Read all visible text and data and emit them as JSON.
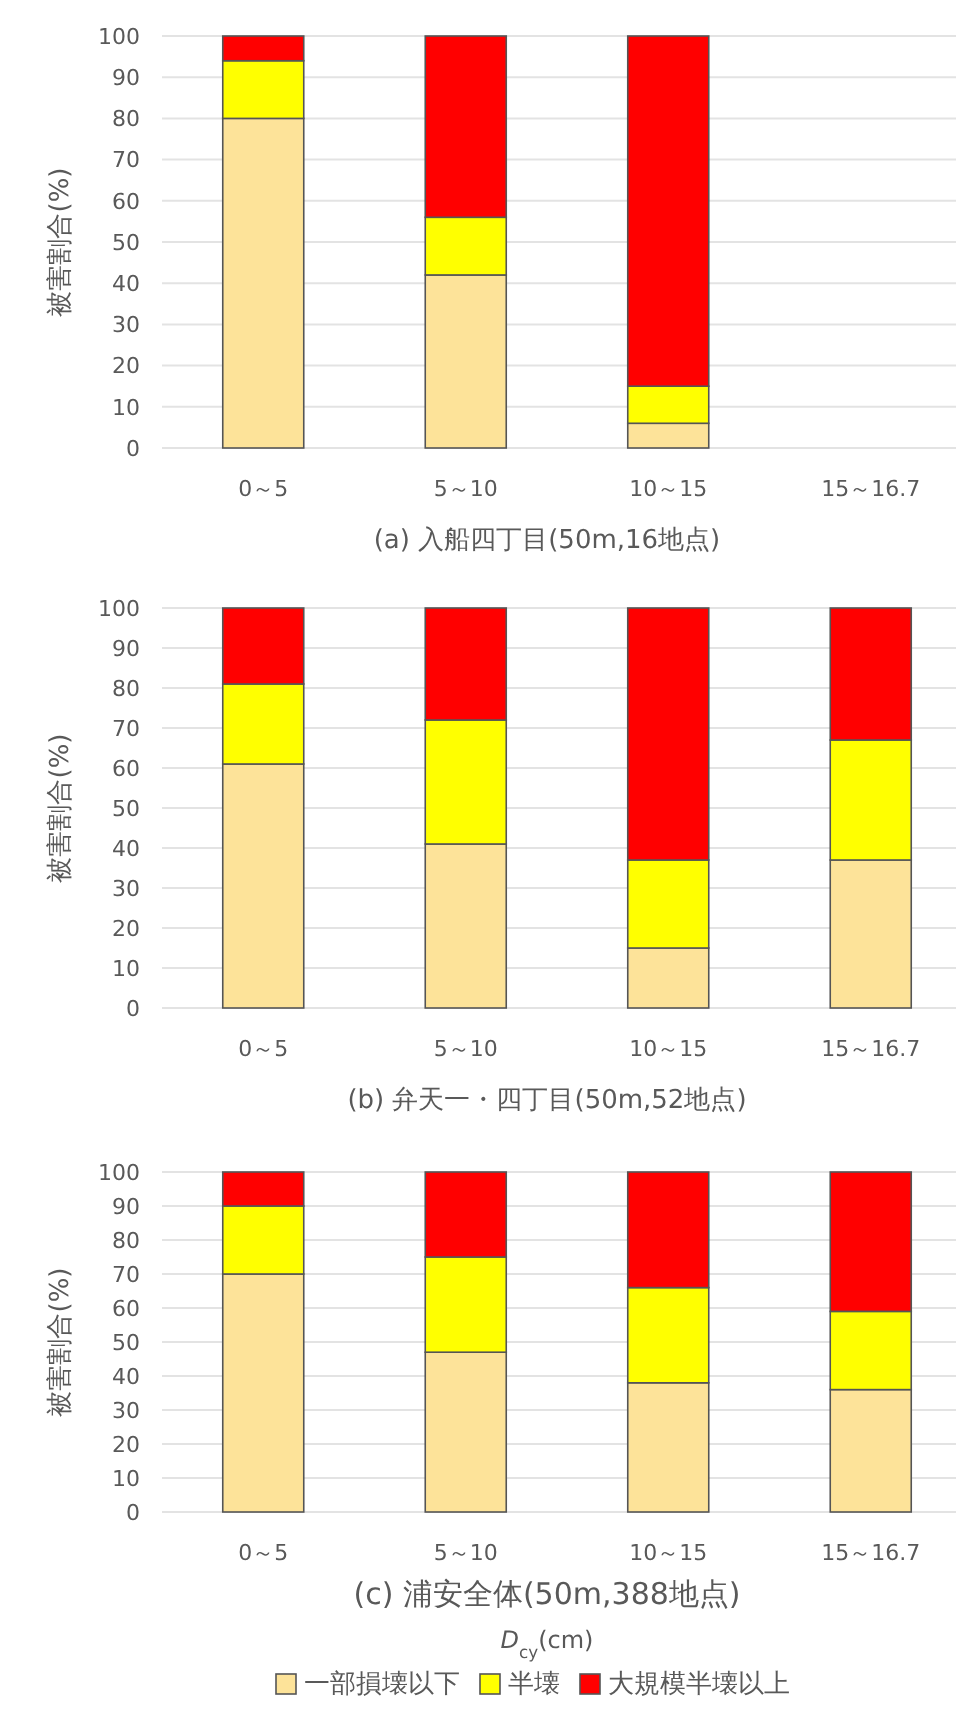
{
  "chart_data": [
    {
      "type": "bar",
      "stacked": true,
      "title": "(a) 入船四丁目(50m,16地点)",
      "ylabel": "被害割合(%)",
      "categories": [
        "0～5",
        "5～10",
        "10～15",
        "15～16.7"
      ],
      "ylim": [
        0,
        100
      ],
      "yticks": [
        0,
        10,
        20,
        30,
        40,
        50,
        60,
        70,
        80,
        90,
        100
      ],
      "grid": "y",
      "series": [
        {
          "color": "#fde399",
          "values": [
            80,
            42,
            6,
            null
          ]
        },
        {
          "color": "#ffff00",
          "values": [
            14,
            14,
            9,
            null
          ]
        },
        {
          "color": "#ff0000",
          "values": [
            6,
            44,
            85,
            null
          ]
        }
      ]
    },
    {
      "type": "bar",
      "stacked": true,
      "title": "(b) 弁天一・四丁目(50m,52地点)",
      "ylabel": "被害割合(%)",
      "categories": [
        "0～5",
        "5～10",
        "10～15",
        "15～16.7"
      ],
      "ylim": [
        0,
        100
      ],
      "yticks": [
        0,
        10,
        20,
        30,
        40,
        50,
        60,
        70,
        80,
        90,
        100
      ],
      "grid": "y",
      "series": [
        {
          "color": "#fde399",
          "values": [
            61,
            41,
            15,
            37
          ]
        },
        {
          "color": "#ffff00",
          "values": [
            20,
            31,
            22,
            30
          ]
        },
        {
          "color": "#ff0000",
          "values": [
            19,
            28,
            63,
            33
          ]
        }
      ]
    },
    {
      "type": "bar",
      "stacked": true,
      "title": "(c) 浦安全体(50m,388地点)",
      "ylabel": "被害割合(%)",
      "xlabel": "D$_{cy}$(cm)",
      "categories": [
        "0～5",
        "5～10",
        "10～15",
        "15～16.7"
      ],
      "ylim": [
        0,
        100
      ],
      "yticks": [
        0,
        10,
        20,
        30,
        40,
        50,
        60,
        70,
        80,
        90,
        100
      ],
      "grid": "y",
      "legend": "bottom",
      "series": [
        {
          "name": "一部損壊以下",
          "color": "#fde399",
          "values": [
            70,
            47,
            38,
            36
          ]
        },
        {
          "name": "半壊",
          "color": "#ffff00",
          "values": [
            20,
            28,
            28,
            23
          ]
        },
        {
          "name": "大規模半壊以上",
          "color": "#ff0000",
          "values": [
            10,
            25,
            34,
            41
          ]
        }
      ]
    }
  ]
}
